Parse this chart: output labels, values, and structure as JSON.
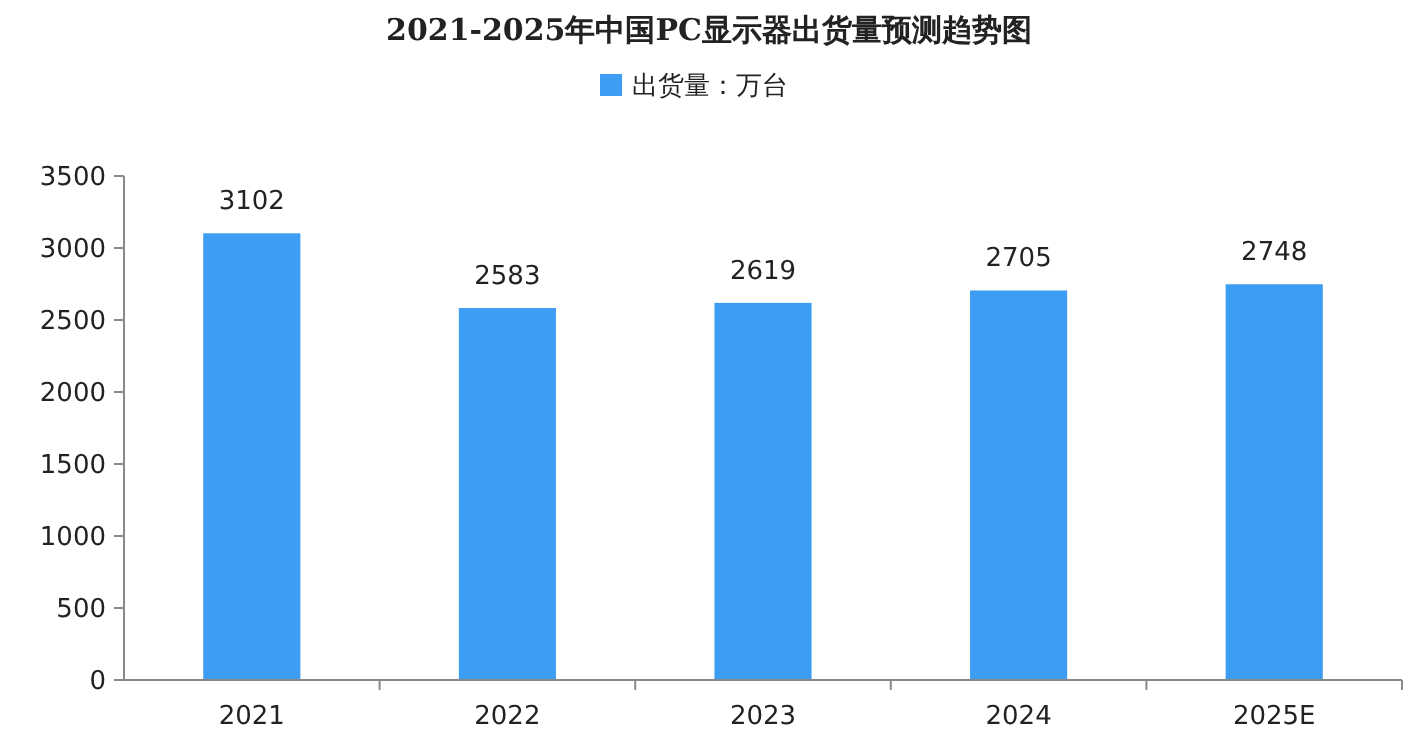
{
  "chart_data": {
    "type": "bar",
    "title": "2021-2025年中国PC显示器出货量预测趋势图",
    "categories": [
      "2021",
      "2022",
      "2023",
      "2024",
      "2025E"
    ],
    "series": [
      {
        "name": "出货量：万台",
        "color": "#3d9df3",
        "values": [
          3102,
          2583,
          2619,
          2705,
          2748
        ]
      }
    ],
    "ylim": [
      0,
      3500
    ],
    "yticks": [
      0,
      500,
      1000,
      1500,
      2000,
      2500,
      3000,
      3500
    ],
    "data_labels": true,
    "legend": "top",
    "grid": false
  }
}
